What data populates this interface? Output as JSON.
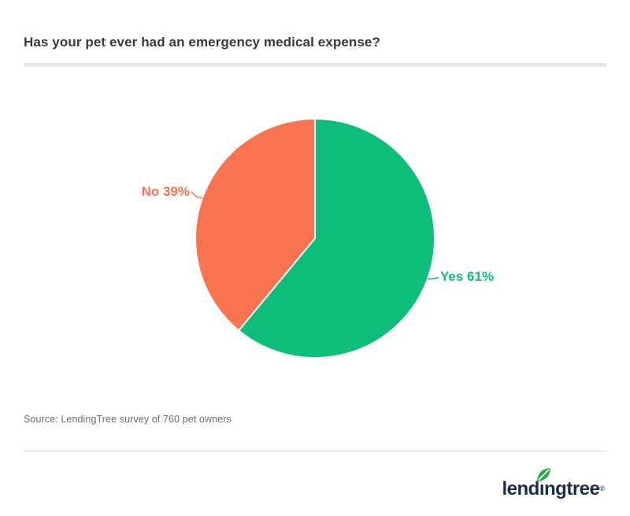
{
  "header": {
    "title": "Has your pet ever had an emergency medical expense?"
  },
  "chart_data": {
    "type": "pie",
    "title": "Has your pet ever had an emergency medical expense?",
    "labels": [
      "Yes",
      "No"
    ],
    "values": [
      61,
      39
    ],
    "unit": "%",
    "colors": [
      "#0EBD77",
      "#FB7350"
    ],
    "start_angle_deg": 0,
    "direction": "clockwise",
    "legend": "none",
    "label_format": "{label} {value}%",
    "data_labels": [
      "Yes 61%",
      "No 39%"
    ]
  },
  "footer": {
    "source": "Source: LendingTree survey of 760 pet owners",
    "logo": {
      "name": "lendingtree",
      "text_before_i": "lend",
      "dotless_i": "ı",
      "text_after_i": "ngtree",
      "registered_mark": "®",
      "navy": "#1E2B49",
      "leaf_green": "#2BA84A"
    }
  }
}
